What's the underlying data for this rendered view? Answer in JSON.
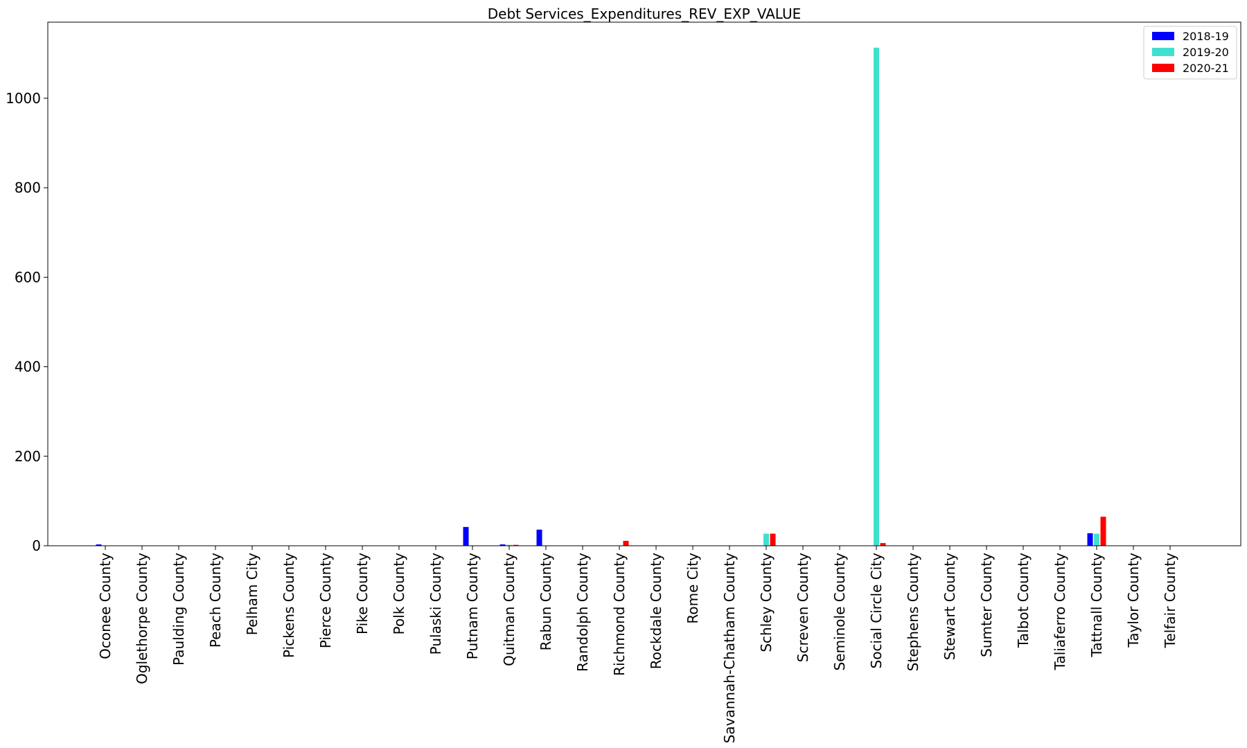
{
  "chart_data": {
    "type": "bar",
    "title": "Debt Services_Expenditures_REV_EXP_VALUE",
    "xlabel": "",
    "ylabel": "",
    "ylim": [
      0,
      1170
    ],
    "yticks": [
      0,
      200,
      400,
      600,
      800,
      1000
    ],
    "grid": false,
    "legend_position": "top-right",
    "categories": [
      "Oconee County",
      "Oglethorpe County",
      "Paulding County",
      "Peach County",
      "Pelham City",
      "Pickens County",
      "Pierce County",
      "Pike County",
      "Polk County",
      "Pulaski County",
      "Putnam County",
      "Quitman County",
      "Rabun County",
      "Randolph County",
      "Richmond County",
      "Rockdale County",
      "Rome City",
      "Savannah-Chatham County",
      "Schley County",
      "Screven County",
      "Seminole County",
      "Social Circle City",
      "Stephens County",
      "Stewart County",
      "Sumter County",
      "Talbot County",
      "Taliaferro County",
      "Tattnall County",
      "Taylor County",
      "Telfair County"
    ],
    "series": [
      {
        "name": "2018-19",
        "color": "#0000ff",
        "values": [
          3,
          0,
          0,
          0,
          0,
          0,
          0,
          0,
          0,
          0,
          42,
          3,
          36,
          0,
          0,
          0,
          0,
          0,
          0,
          0,
          0,
          0,
          0,
          0,
          0,
          0,
          0,
          28,
          0,
          0
        ]
      },
      {
        "name": "2019-20",
        "color": "#40e0d0",
        "values": [
          0,
          0,
          0,
          0,
          0,
          0,
          0,
          0,
          0,
          0,
          0,
          2,
          0,
          0,
          0,
          0,
          0,
          0,
          27,
          0,
          0,
          1113,
          0,
          0,
          0,
          0,
          0,
          27,
          0,
          0
        ]
      },
      {
        "name": "2020-21",
        "color": "#ff0000",
        "values": [
          0,
          0,
          0,
          0,
          0,
          0,
          0,
          0,
          0,
          0,
          0,
          2,
          0,
          0,
          11,
          0,
          0,
          0,
          27,
          0,
          0,
          6,
          0,
          0,
          0,
          0,
          0,
          65,
          0,
          0
        ]
      }
    ]
  }
}
